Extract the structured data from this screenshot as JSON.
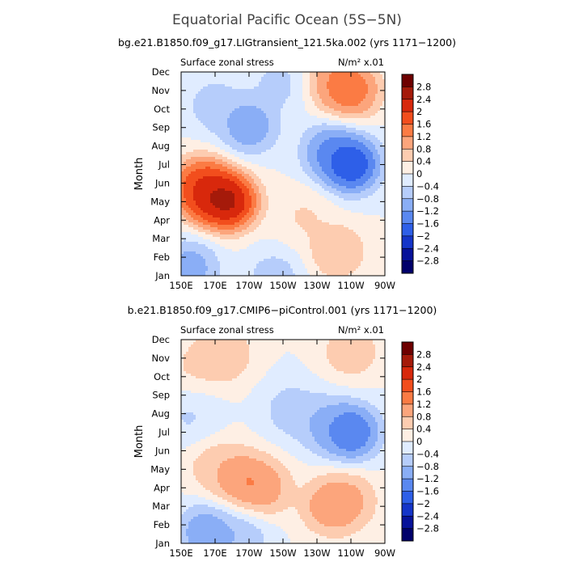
{
  "title": "Equatorial Pacific Ocean (5S−5N)",
  "colorbar": {
    "levels": [
      "2.8",
      "2.4",
      "2",
      "1.6",
      "1.2",
      "0.8",
      "0.4",
      "0",
      "−0.4",
      "−0.8",
      "−1.2",
      "−1.6",
      "−2",
      "−2.4",
      "−2.8"
    ],
    "colors": [
      "#6e0000",
      "#a51a0a",
      "#d8280c",
      "#f24e1d",
      "#fb7b44",
      "#fca57c",
      "#fdccb0",
      "#feefe4",
      "#e0ecff",
      "#b6cdfb",
      "#8aaef6",
      "#5a88f0",
      "#2e5fe8",
      "#1535c9",
      "#07129a",
      "#00006b"
    ]
  },
  "chart_data": [
    {
      "type": "heatmap",
      "subtitle": "bg.e21.B1850.f09_g17.LIGtransient_121.5ka.002 (yrs 1171−1200)",
      "left_label": "Surface zonal stress",
      "right_label": "N/m² x.01",
      "ylabel": "Month",
      "x_ticks": [
        "150E",
        "170E",
        "170W",
        "150W",
        "130W",
        "110W",
        "90W"
      ],
      "y_ticks": [
        "Jan",
        "Feb",
        "Mar",
        "Apr",
        "May",
        "Jun",
        "Jul",
        "Aug",
        "Sep",
        "Oct",
        "Nov",
        "Dec"
      ],
      "x_range": [
        150,
        270
      ],
      "contour_interval": 0.4,
      "features": [
        {
          "lon": 178,
          "month": 5.0,
          "value": 2.8
        },
        {
          "lon": 166,
          "month": 5.4,
          "value": 2.3
        },
        {
          "lon": 162,
          "month": 5.9,
          "value": 1.8
        },
        {
          "lon": 250,
          "month": 11.0,
          "value": 1.7
        },
        {
          "lon": 240,
          "month": 11.6,
          "value": 1.2
        },
        {
          "lon": 242,
          "month": 2.3,
          "value": 0.9
        },
        {
          "lon": 222,
          "month": 4.2,
          "value": 0.5
        },
        {
          "lon": 250,
          "month": 7.0,
          "value": -2.3
        },
        {
          "lon": 238,
          "month": 7.7,
          "value": -1.4
        },
        {
          "lon": 190,
          "month": 9.1,
          "value": -1.3
        },
        {
          "lon": 170,
          "month": 10.2,
          "value": -0.7
        },
        {
          "lon": 208,
          "month": 11.4,
          "value": -0.6
        },
        {
          "lon": 155,
          "month": 1.4,
          "value": -1.2
        },
        {
          "lon": 205,
          "month": 0.9,
          "value": -0.7
        }
      ]
    },
    {
      "type": "heatmap",
      "subtitle": "b.e21.B1850.f09_g17.CMIP6−piControl.001 (yrs 1171−1200)",
      "left_label": "Surface zonal stress",
      "right_label": "N/m² x.01",
      "ylabel": "Month",
      "x_ticks": [
        "150E",
        "170E",
        "170W",
        "150W",
        "130W",
        "110W",
        "90W"
      ],
      "y_ticks": [
        "Jan",
        "Feb",
        "Mar",
        "Apr",
        "May",
        "Jun",
        "Jul",
        "Aug",
        "Sep",
        "Oct",
        "Nov",
        "Dec"
      ],
      "x_range": [
        150,
        270
      ],
      "contour_interval": 0.4,
      "features": [
        {
          "lon": 185,
          "month": 4.5,
          "value": 1.3
        },
        {
          "lon": 198,
          "month": 4.0,
          "value": 1.2
        },
        {
          "lon": 238,
          "month": 3.0,
          "value": 1.25
        },
        {
          "lon": 248,
          "month": 3.3,
          "value": 1.0
        },
        {
          "lon": 170,
          "month": 5.2,
          "value": 0.7
        },
        {
          "lon": 175,
          "month": 11.2,
          "value": 0.9
        },
        {
          "lon": 250,
          "month": 11.4,
          "value": 0.8
        },
        {
          "lon": 158,
          "month": 10.6,
          "value": 0.5
        },
        {
          "lon": 250,
          "month": 7.0,
          "value": -1.9
        },
        {
          "lon": 235,
          "month": 7.4,
          "value": -1.0
        },
        {
          "lon": 215,
          "month": 8.2,
          "value": -0.7
        },
        {
          "lon": 155,
          "month": 7.8,
          "value": -0.5
        },
        {
          "lon": 165,
          "month": 1.6,
          "value": -1.3
        },
        {
          "lon": 185,
          "month": 1.3,
          "value": -0.8
        }
      ]
    }
  ]
}
